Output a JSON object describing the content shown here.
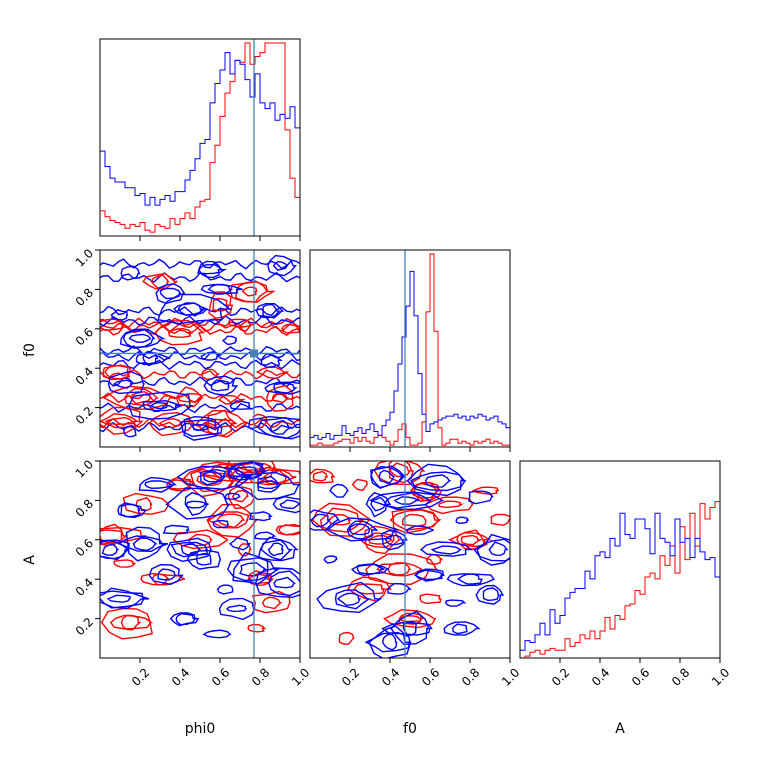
{
  "chart_data": {
    "type": "corner",
    "parameters": [
      "phi0",
      "f0",
      "A"
    ],
    "truths": {
      "phi0": 0.77,
      "f0": 0.475
    },
    "truth_color": "#4682b4",
    "series": [
      {
        "color": "#ff0000"
      },
      {
        "color": "#0000ff"
      }
    ],
    "tick_values": [
      0.2,
      0.4,
      0.6,
      0.8,
      1.0
    ],
    "tick_labels": [
      "0.2",
      "0.4",
      "0.6",
      "0.8",
      "1.0"
    ],
    "axis_range": [
      0,
      1
    ],
    "grid": false,
    "histograms": {
      "phi0": {
        "bin_width": 0.025,
        "red": [
          0.13,
          0.1,
          0.08,
          0.07,
          0.06,
          0.04,
          0.06,
          0.05,
          0.07,
          0.03,
          0.02,
          0.06,
          0.05,
          0.04,
          0.09,
          0.06,
          0.09,
          0.12,
          0.09,
          0.15,
          0.18,
          0.19,
          0.38,
          0.47,
          0.62,
          0.74,
          0.8,
          0.91,
          0.9,
          1.0,
          0.89,
          0.93,
          0.95,
          1.0,
          1.0,
          1.0,
          1.0,
          0.55,
          0.3,
          0.2
        ],
        "blue": [
          0.44,
          0.36,
          0.3,
          0.28,
          0.28,
          0.25,
          0.25,
          0.21,
          0.22,
          0.16,
          0.2,
          0.16,
          0.19,
          0.21,
          0.18,
          0.23,
          0.23,
          0.29,
          0.34,
          0.4,
          0.48,
          0.5,
          0.69,
          0.79,
          0.86,
          0.95,
          0.84,
          0.91,
          0.89,
          0.81,
          0.72,
          0.84,
          0.69,
          0.66,
          0.69,
          0.6,
          0.63,
          0.61,
          0.67,
          0.56
        ]
      },
      "f0": {
        "bin_width": 0.02,
        "red": [
          0.01,
          0.01,
          0.02,
          0.01,
          0.01,
          0.01,
          0.02,
          0.03,
          0.04,
          0.04,
          0.02,
          0.05,
          0.03,
          0.05,
          0.03,
          0.02,
          0.05,
          0.06,
          0.05,
          0.03,
          0.01,
          0.03,
          0.09,
          0.12,
          0.05,
          0.01,
          0.01,
          0.02,
          0.13,
          0.7,
          1.0,
          0.6,
          0.1,
          0.01,
          0.02,
          0.04,
          0.04,
          0.02,
          0.03,
          0.02,
          0.01,
          0.03,
          0.02,
          0.03,
          0.04,
          0.02,
          0.03,
          0.02,
          0.01,
          0.01
        ],
        "blue": [
          0.05,
          0.06,
          0.04,
          0.05,
          0.07,
          0.04,
          0.06,
          0.06,
          0.11,
          0.07,
          0.06,
          0.08,
          0.1,
          0.07,
          0.09,
          0.12,
          0.08,
          0.06,
          0.11,
          0.14,
          0.18,
          0.29,
          0.43,
          0.57,
          0.73,
          0.91,
          0.68,
          0.38,
          0.17,
          0.08,
          0.12,
          0.13,
          0.14,
          0.15,
          0.16,
          0.16,
          0.17,
          0.15,
          0.16,
          0.14,
          0.16,
          0.15,
          0.17,
          0.16,
          0.14,
          0.15,
          0.16,
          0.13,
          0.12,
          0.1
        ]
      },
      "A": {
        "bin_width": 0.025,
        "red": [
          0.0,
          0.01,
          0.03,
          0.04,
          0.02,
          0.04,
          0.05,
          0.04,
          0.04,
          0.1,
          0.06,
          0.08,
          0.12,
          0.1,
          0.14,
          0.1,
          0.14,
          0.21,
          0.15,
          0.22,
          0.2,
          0.27,
          0.28,
          0.35,
          0.33,
          0.42,
          0.44,
          0.41,
          0.53,
          0.48,
          0.58,
          0.44,
          0.68,
          0.51,
          0.75,
          0.58,
          0.8,
          0.72,
          0.78,
          0.81
        ],
        "blue": [
          0.04,
          0.09,
          0.08,
          0.12,
          0.18,
          0.12,
          0.25,
          0.18,
          0.22,
          0.31,
          0.34,
          0.36,
          0.36,
          0.45,
          0.41,
          0.53,
          0.55,
          0.52,
          0.62,
          0.58,
          0.75,
          0.64,
          0.62,
          0.72,
          0.72,
          0.67,
          0.54,
          0.75,
          0.62,
          0.6,
          0.53,
          0.72,
          0.6,
          0.62,
          0.52,
          0.62,
          0.55,
          0.51,
          0.52,
          0.42
        ]
      }
    },
    "contours_f0_vs_phi0": {
      "red": [
        [
          0.1,
          0.13
        ],
        [
          0.35,
          0.12
        ],
        [
          0.6,
          0.12
        ],
        [
          0.8,
          0.13
        ],
        [
          0.2,
          0.25
        ],
        [
          0.45,
          0.25
        ],
        [
          0.65,
          0.24
        ],
        [
          0.9,
          0.25
        ],
        [
          0.08,
          0.38
        ],
        [
          0.55,
          0.37
        ],
        [
          0.86,
          0.38
        ],
        [
          0.05,
          0.62
        ],
        [
          0.4,
          0.58
        ],
        [
          0.7,
          0.63
        ],
        [
          0.95,
          0.6
        ],
        [
          0.3,
          0.84
        ],
        [
          0.75,
          0.79
        ],
        [
          0.6,
          0.72
        ]
      ],
      "blue": [
        [
          0.15,
          0.08
        ],
        [
          0.5,
          0.1
        ],
        [
          0.9,
          0.1
        ],
        [
          0.3,
          0.21
        ],
        [
          0.7,
          0.21
        ],
        [
          0.12,
          0.32
        ],
        [
          0.6,
          0.31
        ],
        [
          0.92,
          0.3
        ],
        [
          0.25,
          0.45
        ],
        [
          0.55,
          0.46
        ],
        [
          0.85,
          0.44
        ],
        [
          0.2,
          0.55
        ],
        [
          0.65,
          0.54
        ],
        [
          0.1,
          0.67
        ],
        [
          0.45,
          0.7
        ],
        [
          0.85,
          0.69
        ],
        [
          0.35,
          0.78
        ],
        [
          0.6,
          0.8
        ],
        [
          0.15,
          0.88
        ],
        [
          0.55,
          0.9
        ],
        [
          0.9,
          0.92
        ]
      ]
    },
    "contours_A_vs_phi0": {
      "red": [
        [
          0.05,
          0.62
        ],
        [
          0.12,
          0.48
        ],
        [
          0.22,
          0.78
        ],
        [
          0.4,
          0.88
        ],
        [
          0.55,
          0.9
        ],
        [
          0.62,
          0.95
        ],
        [
          0.75,
          0.97
        ],
        [
          0.88,
          0.92
        ],
        [
          0.65,
          0.7
        ],
        [
          0.72,
          0.55
        ],
        [
          0.8,
          0.4
        ],
        [
          0.86,
          0.28
        ],
        [
          0.78,
          0.15
        ],
        [
          0.5,
          0.6
        ],
        [
          0.95,
          0.65
        ],
        [
          0.3,
          0.4
        ],
        [
          0.15,
          0.18
        ],
        [
          0.7,
          0.82
        ]
      ],
      "blue": [
        [
          0.05,
          0.55
        ],
        [
          0.1,
          0.3
        ],
        [
          0.15,
          0.75
        ],
        [
          0.22,
          0.58
        ],
        [
          0.28,
          0.88
        ],
        [
          0.33,
          0.42
        ],
        [
          0.38,
          0.65
        ],
        [
          0.42,
          0.2
        ],
        [
          0.48,
          0.78
        ],
        [
          0.52,
          0.5
        ],
        [
          0.56,
          0.92
        ],
        [
          0.6,
          0.68
        ],
        [
          0.63,
          0.35
        ],
        [
          0.66,
          0.82
        ],
        [
          0.7,
          0.58
        ],
        [
          0.73,
          0.95
        ],
        [
          0.76,
          0.45
        ],
        [
          0.8,
          0.72
        ],
        [
          0.84,
          0.88
        ],
        [
          0.88,
          0.55
        ],
        [
          0.92,
          0.38
        ],
        [
          0.95,
          0.78
        ],
        [
          0.68,
          0.25
        ],
        [
          0.58,
          0.12
        ],
        [
          0.82,
          0.62
        ],
        [
          0.45,
          0.55
        ]
      ]
    },
    "contours_A_vs_f0": {
      "red": [
        [
          0.05,
          0.92
        ],
        [
          0.15,
          0.7
        ],
        [
          0.25,
          0.88
        ],
        [
          0.35,
          0.6
        ],
        [
          0.45,
          0.95
        ],
        [
          0.52,
          0.7
        ],
        [
          0.58,
          0.85
        ],
        [
          0.62,
          0.5
        ],
        [
          0.6,
          0.3
        ],
        [
          0.7,
          0.78
        ],
        [
          0.8,
          0.6
        ],
        [
          0.95,
          0.7
        ],
        [
          0.45,
          0.45
        ],
        [
          0.5,
          0.2
        ],
        [
          0.18,
          0.1
        ],
        [
          0.3,
          0.35
        ],
        [
          0.88,
          0.85
        ]
      ],
      "blue": [
        [
          0.05,
          0.7
        ],
        [
          0.1,
          0.5
        ],
        [
          0.15,
          0.85
        ],
        [
          0.2,
          0.3
        ],
        [
          0.25,
          0.65
        ],
        [
          0.3,
          0.45
        ],
        [
          0.34,
          0.78
        ],
        [
          0.38,
          0.92
        ],
        [
          0.42,
          0.6
        ],
        [
          0.44,
          0.35
        ],
        [
          0.48,
          0.8
        ],
        [
          0.5,
          0.15
        ],
        [
          0.55,
          0.65
        ],
        [
          0.6,
          0.42
        ],
        [
          0.64,
          0.9
        ],
        [
          0.68,
          0.55
        ],
        [
          0.72,
          0.28
        ],
        [
          0.76,
          0.7
        ],
        [
          0.8,
          0.4
        ],
        [
          0.85,
          0.82
        ],
        [
          0.9,
          0.32
        ],
        [
          0.94,
          0.55
        ],
        [
          0.4,
          0.08
        ],
        [
          0.75,
          0.15
        ]
      ]
    }
  }
}
